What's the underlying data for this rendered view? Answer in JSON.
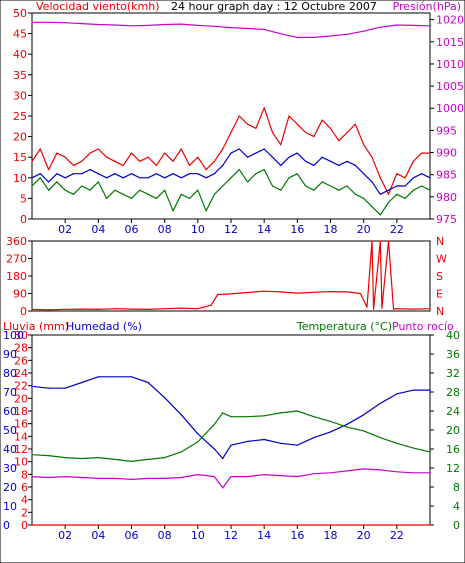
{
  "title": "24 hour graph day : 12 Octubre 2007",
  "colors": {
    "wind": "#ee0000",
    "gust": "#ee0000",
    "wind_avg": "#0000cc",
    "wind_low": "#007700",
    "pressure": "#cc00cc",
    "wind_dir": "#ee0000",
    "rain": "#ee0000",
    "humidity": "#0000cc",
    "temperature": "#007700",
    "dewpoint": "#cc00cc",
    "grid": "#000000",
    "frame": "#000000"
  },
  "x_ticks": [
    "02",
    "04",
    "06",
    "08",
    "10",
    "12",
    "14",
    "16",
    "18",
    "20",
    "22"
  ],
  "chart_data": [
    {
      "type": "line",
      "panel": "wind-pressure",
      "left_axis_label": "Velocidad viento(kmh)",
      "right_axis_label": "Presión(hPa)",
      "left_ticks": [
        "0",
        "5",
        "10",
        "15",
        "20",
        "25",
        "30",
        "35",
        "40",
        "45",
        "50"
      ],
      "right_ticks": [
        "975",
        "980",
        "985",
        "990",
        "995",
        "1000",
        "1005",
        "1010",
        "1015",
        "1020"
      ],
      "left_range": [
        0,
        50
      ],
      "right_range": [
        975,
        1021.5
      ],
      "x_range": [
        0,
        24
      ],
      "grid": "off",
      "series": [
        {
          "axis": "right",
          "color_key": "pressure",
          "x": [
            0,
            1,
            2,
            3,
            4,
            5,
            6,
            7,
            8,
            9,
            10,
            11,
            12,
            13,
            14,
            15,
            16,
            17,
            18,
            19,
            20,
            21,
            22,
            23,
            24
          ],
          "values": [
            1019.4,
            1019.4,
            1019.3,
            1019.1,
            1018.9,
            1018.8,
            1018.6,
            1018.7,
            1018.9,
            1019.0,
            1018.7,
            1018.5,
            1018.2,
            1018.0,
            1017.8,
            1016.8,
            1016.0,
            1016.0,
            1016.3,
            1016.7,
            1017.4,
            1018.3,
            1018.8,
            1018.7,
            1018.6
          ]
        },
        {
          "axis": "left",
          "color_key": "gust",
          "x": [
            0,
            0.5,
            1,
            1.5,
            2,
            2.5,
            3,
            3.5,
            4,
            4.5,
            5,
            5.5,
            6,
            6.5,
            7,
            7.5,
            8,
            8.5,
            9,
            9.5,
            10,
            10.5,
            11,
            11.5,
            12,
            12.5,
            13,
            13.5,
            14,
            14.5,
            15,
            15.5,
            16,
            16.5,
            17,
            17.5,
            18,
            18.5,
            19,
            19.5,
            20,
            20.5,
            21,
            21.5,
            22,
            22.5,
            23,
            23.5,
            24
          ],
          "values": [
            14,
            17,
            12,
            16,
            15,
            13,
            14,
            16,
            17,
            15,
            14,
            13,
            16,
            14,
            15,
            13,
            16,
            14,
            17,
            13,
            15,
            12,
            14,
            17,
            21,
            25,
            23,
            22,
            27,
            21,
            18,
            25,
            23,
            21,
            20,
            24,
            22,
            19,
            21,
            23,
            18,
            15,
            10,
            6,
            11,
            10,
            14,
            16,
            16
          ]
        },
        {
          "axis": "left",
          "color_key": "wind_avg",
          "x": [
            0,
            0.5,
            1,
            1.5,
            2,
            2.5,
            3,
            3.5,
            4,
            4.5,
            5,
            5.5,
            6,
            6.5,
            7,
            7.5,
            8,
            8.5,
            9,
            9.5,
            10,
            10.5,
            11,
            11.5,
            12,
            12.5,
            13,
            13.5,
            14,
            14.5,
            15,
            15.5,
            16,
            16.5,
            17,
            17.5,
            18,
            18.5,
            19,
            19.5,
            20,
            20.5,
            21,
            21.5,
            22,
            22.5,
            23,
            23.5,
            24
          ],
          "values": [
            10,
            11,
            9,
            11,
            10,
            11,
            11,
            12,
            11,
            10,
            11,
            10,
            11,
            10,
            10,
            11,
            10,
            11,
            10,
            11,
            11,
            10,
            11,
            13,
            16,
            17,
            15,
            16,
            17,
            15,
            13,
            15,
            16,
            14,
            13,
            15,
            14,
            13,
            14,
            13,
            11,
            9,
            6,
            7,
            8,
            8,
            10,
            11,
            10
          ]
        },
        {
          "axis": "left",
          "color_key": "wind_low",
          "x": [
            0,
            0.5,
            1,
            1.5,
            2,
            2.5,
            3,
            3.5,
            4,
            4.5,
            5,
            5.5,
            6,
            6.5,
            7,
            7.5,
            8,
            8.5,
            9,
            9.5,
            10,
            10.5,
            11,
            11.5,
            12,
            12.5,
            13,
            13.5,
            14,
            14.5,
            15,
            15.5,
            16,
            16.5,
            17,
            17.5,
            18,
            18.5,
            19,
            19.5,
            20,
            20.5,
            21,
            21.5,
            22,
            22.5,
            23,
            23.5,
            24
          ],
          "values": [
            8,
            10,
            7,
            9,
            7,
            6,
            8,
            7,
            9,
            5,
            7,
            6,
            5,
            7,
            6,
            5,
            7,
            2,
            6,
            5,
            7,
            2,
            6,
            8,
            10,
            12,
            9,
            11,
            12,
            8,
            7,
            10,
            11,
            8,
            7,
            9,
            8,
            7,
            8,
            6,
            5,
            3,
            1,
            4,
            6,
            5,
            7,
            8,
            7
          ]
        }
      ]
    },
    {
      "type": "line",
      "panel": "wind-direction",
      "left_ticks": [
        "0",
        "90",
        "180",
        "270",
        "360"
      ],
      "right_ticks": [
        "N",
        "E",
        "S",
        "W",
        "N"
      ],
      "left_range": [
        0,
        360
      ],
      "x_range": [
        0,
        24
      ],
      "series": [
        {
          "axis": "left",
          "color_key": "wind_dir",
          "x": [
            0,
            1,
            2,
            3,
            4,
            5,
            6,
            7,
            8,
            9,
            10,
            10.8,
            11.2,
            12,
            13,
            14,
            15,
            16,
            17,
            18,
            19,
            19.8,
            20.2,
            20.5,
            20.6,
            21,
            21.1,
            21.5,
            21.8,
            22,
            23,
            24
          ],
          "values": [
            8,
            6,
            9,
            10,
            8,
            12,
            10,
            8,
            12,
            15,
            12,
            30,
            85,
            88,
            95,
            102,
            98,
            92,
            96,
            100,
            98,
            90,
            20,
            360,
            10,
            360,
            15,
            360,
            10,
            12,
            10,
            12
          ]
        }
      ]
    },
    {
      "type": "line",
      "panel": "rain-humidity-temp",
      "left_axis_label": "Lluvia (mm)",
      "left_axis_label2": "Humedad (%)",
      "right_axis_label": "Temperatura (°C)",
      "right_axis_label2": "Punto rocío",
      "rain_ticks": [
        "0",
        "2",
        "4",
        "6",
        "8",
        "10",
        "12",
        "14",
        "16",
        "18",
        "20",
        "22",
        "24",
        "26",
        "28",
        "30"
      ],
      "humidity_ticks": [
        "0",
        "10",
        "20",
        "30",
        "40",
        "50",
        "60",
        "70",
        "80",
        "90",
        "100"
      ],
      "temp_ticks": [
        "0",
        "4",
        "8",
        "12",
        "16",
        "20",
        "24",
        "28",
        "32",
        "36",
        "40"
      ],
      "left_range": [
        0,
        100
      ],
      "right_range": [
        0,
        40
      ],
      "x_range": [
        0,
        24
      ],
      "series": [
        {
          "axis": "left",
          "color_key": "humidity",
          "x": [
            0,
            1,
            2,
            3,
            4,
            5,
            6,
            7,
            8,
            9,
            10,
            11,
            11.5,
            12,
            13,
            14,
            15,
            16,
            17,
            18,
            19,
            20,
            21,
            22,
            23,
            24
          ],
          "values": [
            73,
            72,
            72,
            75,
            78,
            78,
            78,
            75,
            67,
            58,
            48,
            40,
            35,
            42,
            44,
            45,
            43,
            42,
            46,
            49,
            53,
            58,
            64,
            69,
            71,
            71
          ]
        },
        {
          "axis": "right",
          "color_key": "temperature",
          "x": [
            0,
            1,
            2,
            3,
            4,
            5,
            6,
            7,
            8,
            9,
            10,
            11,
            11.5,
            12,
            13,
            14,
            15,
            16,
            17,
            18,
            19,
            20,
            21,
            22,
            23,
            24
          ],
          "values": [
            14.8,
            14.6,
            14.2,
            14.0,
            14.2,
            13.8,
            13.4,
            13.8,
            14.2,
            15.4,
            17.5,
            21.2,
            23.6,
            22.8,
            22.8,
            23.0,
            23.6,
            24.0,
            22.8,
            21.8,
            20.6,
            19.8,
            18.4,
            17.2,
            16.2,
            15.4
          ]
        },
        {
          "axis": "right",
          "color_key": "dewpoint",
          "x": [
            0,
            1,
            2,
            3,
            4,
            5,
            6,
            7,
            8,
            9,
            10,
            11,
            11.5,
            12,
            13,
            14,
            15,
            16,
            17,
            18,
            19,
            20,
            21,
            22,
            23,
            24
          ],
          "values": [
            10.2,
            10.0,
            10.2,
            10.0,
            9.8,
            9.8,
            9.6,
            9.8,
            9.8,
            10.0,
            10.6,
            10.2,
            7.8,
            10.2,
            10.2,
            10.6,
            10.4,
            10.2,
            10.8,
            11.0,
            11.4,
            11.8,
            11.6,
            11.2,
            11.0,
            11.0
          ]
        },
        {
          "axis": "left",
          "color_key": "rain",
          "x": [
            0,
            24
          ],
          "values": [
            0,
            0
          ]
        }
      ]
    }
  ]
}
